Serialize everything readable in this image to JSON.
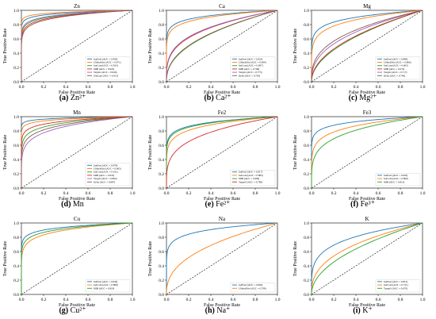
{
  "chart_data": [
    {
      "type": "line",
      "title": "Zn",
      "caption_letter": "(a)",
      "caption_text": "Zn²⁺",
      "xlabel": "False Positive Rate",
      "ylabel": "True Positive Rate",
      "xlim": [
        0,
        1
      ],
      "ylim": [
        0,
        1
      ],
      "xticks": [
        "0.0",
        "0.2",
        "0.4",
        "0.6",
        "0.8",
        "1.0"
      ],
      "yticks": [
        "0.0",
        "0.2",
        "0.4",
        "0.6",
        "0.8",
        "1.0"
      ],
      "legend_position": "lower-right",
      "series": [
        {
          "name": "IonPred (AUC = 0.959)",
          "auc": 0.959,
          "color": "#1f77b4"
        },
        {
          "name": "LMetalSite (AUC = 0.971)",
          "auc": 0.971,
          "color": "#ff7f0e"
        },
        {
          "name": "IonCom (AUC = 0.933)",
          "auc": 0.933,
          "color": "#2ca02c"
        },
        {
          "name": "MIB (AUC = 0.922)",
          "auc": 0.922,
          "color": "#d62728"
        },
        {
          "name": "Targets (AUC = 0.940)",
          "auc": 0.94,
          "color": "#9467bd"
        },
        {
          "name": "ZinCaps (AUC = 0.913)",
          "auc": 0.913,
          "color": "#8c564b"
        }
      ]
    },
    {
      "type": "line",
      "title": "Ca",
      "caption_letter": "(b)",
      "caption_text": "Ca²⁺",
      "xlabel": "False Positive Rate",
      "ylabel": "True Positive Rate",
      "xlim": [
        0,
        1
      ],
      "ylim": [
        0,
        1
      ],
      "xticks": [
        "0.0",
        "0.2",
        "0.4",
        "0.6",
        "0.8",
        "1.0"
      ],
      "yticks": [
        "0.0",
        "0.2",
        "0.4",
        "0.6",
        "0.8",
        "1.0"
      ],
      "legend_position": "lower-right",
      "series": [
        {
          "name": "IonPred (AUC = 0.923)",
          "auc": 0.923,
          "color": "#1f77b4"
        },
        {
          "name": "LMetalSite (AUC = 0.904)",
          "auc": 0.904,
          "color": "#ff7f0e"
        },
        {
          "name": "IonCom (AUC = 0.697)",
          "auc": 0.697,
          "color": "#2ca02c"
        },
        {
          "name": "MIB (AUC = 0.768)",
          "auc": 0.768,
          "color": "#d62728"
        },
        {
          "name": "Targets (AUC = 0.775)",
          "auc": 0.775,
          "color": "#9467bd"
        },
        {
          "name": "Delia (AUC = 0.702)",
          "auc": 0.702,
          "color": "#8c564b"
        }
      ]
    },
    {
      "type": "line",
      "title": "Mg",
      "caption_letter": "(c)",
      "caption_text": "Mg²⁺",
      "xlabel": "False Positive Rate",
      "ylabel": "True Positive Rate",
      "xlim": [
        0,
        1
      ],
      "ylim": [
        0,
        1
      ],
      "xticks": [
        "0.0",
        "0.2",
        "0.4",
        "0.6",
        "0.8",
        "1.0"
      ],
      "yticks": [
        "0.0",
        "0.2",
        "0.4",
        "0.6",
        "0.8",
        "1.0"
      ],
      "legend_position": "lower-right",
      "series": [
        {
          "name": "IonPred (AUC = 0.899)",
          "auc": 0.899,
          "color": "#1f77b4"
        },
        {
          "name": "LMetalSite (AUC = 0.866)",
          "auc": 0.866,
          "color": "#ff7f0e"
        },
        {
          "name": "IonCom (AUC = 0.665)",
          "auc": 0.665,
          "color": "#2ca02c"
        },
        {
          "name": "MIB (AUC = 0.674)",
          "auc": 0.674,
          "color": "#d62728"
        },
        {
          "name": "Targets (AUC = 0.717)",
          "auc": 0.717,
          "color": "#9467bd"
        },
        {
          "name": "Delia (AUC = 0.740)",
          "auc": 0.74,
          "color": "#8c564b"
        }
      ]
    },
    {
      "type": "line",
      "title": "Mn",
      "caption_letter": "(d)",
      "caption_text": "Mn",
      "xlabel": "False Positive Rate",
      "ylabel": "True Positive Rate",
      "xlim": [
        0,
        1
      ],
      "ylim": [
        0,
        1
      ],
      "xticks": [
        "0.0",
        "0.2",
        "0.4",
        "0.6",
        "0.8",
        "1.0"
      ],
      "yticks": [
        "0.0",
        "0.2",
        "0.4",
        "0.6",
        "0.8",
        "1.0"
      ],
      "legend_position": "lower-right",
      "series": [
        {
          "name": "IonPred (AUC = 0.978)",
          "auc": 0.978,
          "color": "#1f77b4"
        },
        {
          "name": "LMetalSite (AUC = 0.963)",
          "auc": 0.963,
          "color": "#ff7f0e"
        },
        {
          "name": "IonCom (AUC = 0.911)",
          "auc": 0.911,
          "color": "#2ca02c"
        },
        {
          "name": "MIB (AUC = 0.935)",
          "auc": 0.935,
          "color": "#d62728"
        },
        {
          "name": "Targets (AUC = 0.862)",
          "auc": 0.862,
          "color": "#9467bd"
        },
        {
          "name": "Delia (AUC = 0.887)",
          "auc": 0.887,
          "color": "#8c564b"
        }
      ]
    },
    {
      "type": "line",
      "title": "Fe2",
      "caption_letter": "(e)",
      "caption_text": "Fe²⁺",
      "xlabel": "False Positive Rate",
      "ylabel": "True Positive Rate",
      "xlim": [
        0,
        1
      ],
      "ylim": [
        0,
        1
      ],
      "xticks": [
        "0.0",
        "0.2",
        "0.4",
        "0.6",
        "0.8",
        "1.0"
      ],
      "yticks": [
        "0.0",
        "0.2",
        "0.4",
        "0.6",
        "0.8",
        "1.0"
      ],
      "legend_position": "lower-right",
      "series": [
        {
          "name": "IonPred (AUC = 0.917)",
          "auc": 0.917,
          "color": "#1f77b4"
        },
        {
          "name": "IonCom (AUC = 0.883)",
          "auc": 0.883,
          "color": "#ff7f0e"
        },
        {
          "name": "MIB (AUC = 0.909)",
          "auc": 0.909,
          "color": "#2ca02c"
        },
        {
          "name": "TargetS (AUC = 0.789)",
          "auc": 0.789,
          "color": "#d62728"
        }
      ]
    },
    {
      "type": "line",
      "title": "Fe3",
      "caption_letter": "(f)",
      "caption_text": "Fe³⁺",
      "xlabel": "False Positive Rate",
      "ylabel": "True Positive Rate",
      "xlim": [
        0,
        1
      ],
      "ylim": [
        0,
        1
      ],
      "xticks": [
        "0.0",
        "0.2",
        "0.4",
        "0.6",
        "0.8",
        "1.0"
      ],
      "yticks": [
        "0.0",
        "0.2",
        "0.4",
        "0.6",
        "0.8",
        "1.0"
      ],
      "legend_position": "lower-right",
      "series": [
        {
          "name": "IonPred (AUC = 0.926)",
          "auc": 0.926,
          "color": "#1f77b4"
        },
        {
          "name": "IonCom (AUC = 0.869)",
          "auc": 0.869,
          "color": "#ff7f0e"
        },
        {
          "name": "MIB (AUC = 0.813)",
          "auc": 0.813,
          "color": "#2ca02c"
        }
      ]
    },
    {
      "type": "line",
      "title": "Cu",
      "caption_letter": "(g)",
      "caption_text": "Cu²⁺",
      "xlabel": "False Positive Rate",
      "ylabel": "True Positive Rate",
      "xlim": [
        0,
        1
      ],
      "ylim": [
        0,
        1
      ],
      "xticks": [
        "0.0",
        "0.2",
        "0.4",
        "0.6",
        "0.8",
        "1.0"
      ],
      "yticks": [
        "0.0",
        "0.2",
        "0.4",
        "0.6",
        "0.8",
        "1.0"
      ],
      "legend_position": "lower-right",
      "series": [
        {
          "name": "IonPred (AUC = 0.939)",
          "auc": 0.939,
          "color": "#1f77b4"
        },
        {
          "name": "IonCom (AUC = 0.898)",
          "auc": 0.898,
          "color": "#ff7f0e"
        },
        {
          "name": "MIB (AUC = 0.919)",
          "auc": 0.919,
          "color": "#2ca02c"
        }
      ]
    },
    {
      "type": "line",
      "title": "Na",
      "caption_letter": "(h)",
      "caption_text": "Na⁺",
      "xlabel": "False Positive Rate",
      "ylabel": "True Positive Rate",
      "xlim": [
        0,
        1
      ],
      "ylim": [
        0,
        1
      ],
      "xticks": [
        "0.0",
        "0.2",
        "0.4",
        "0.6",
        "0.8",
        "1.0"
      ],
      "yticks": [
        "0.0",
        "0.2",
        "0.4",
        "0.6",
        "0.8",
        "1.0"
      ],
      "legend_position": "lower-right",
      "series": [
        {
          "name": "IonPred (AUC = 0.904)",
          "auc": 0.904,
          "color": "#1f77b4"
        },
        {
          "name": "LMetalSite (AUC = 0.709)",
          "auc": 0.709,
          "color": "#ff7f0e"
        }
      ]
    },
    {
      "type": "line",
      "title": "K",
      "caption_letter": "(i)",
      "caption_text": "K⁺",
      "xlabel": "False Positive Rate",
      "ylabel": "True Positive Rate",
      "xlim": [
        0,
        1
      ],
      "ylim": [
        0,
        1
      ],
      "xticks": [
        "0.0",
        "0.2",
        "0.4",
        "0.6",
        "0.8",
        "1.0"
      ],
      "yticks": [
        "0.0",
        "0.2",
        "0.4",
        "0.6",
        "0.8",
        "1.0"
      ],
      "legend_position": "lower-right",
      "series": [
        {
          "name": "IonPred (AUC = 0.812)",
          "auc": 0.812,
          "color": "#1f77b4"
        },
        {
          "name": "IonCom (AUC = 0.721)",
          "auc": 0.721,
          "color": "#ff7f0e"
        },
        {
          "name": "TargetS (AUC = 0.670)",
          "auc": 0.67,
          "color": "#2ca02c"
        }
      ]
    }
  ]
}
